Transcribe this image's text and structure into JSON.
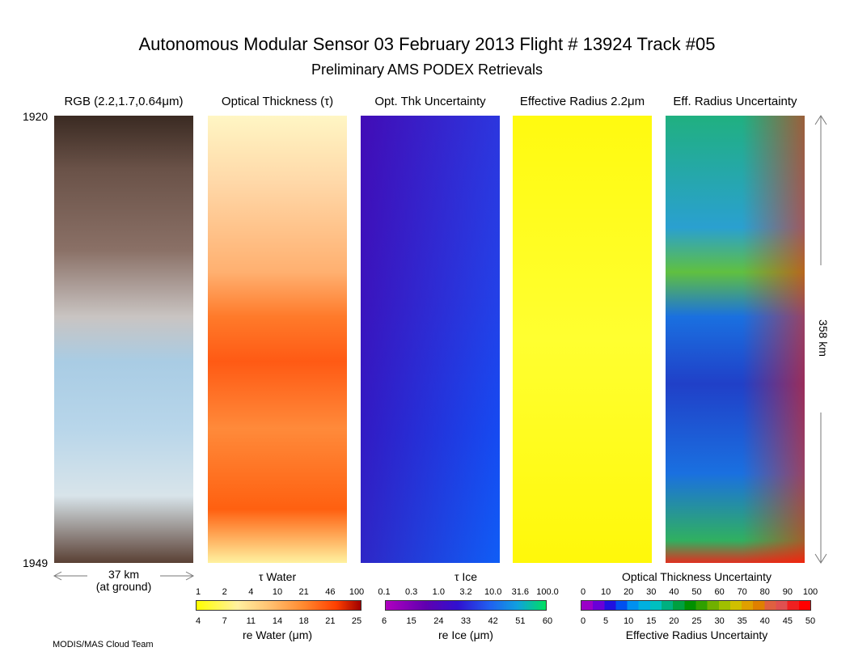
{
  "header": {
    "title": "Autonomous Modular Sensor  03 February 2013  Flight # 13924 Track #05",
    "subtitle": "Preliminary AMS PODEX Retrievals"
  },
  "panels": [
    "RGB (2.2,1.7,0.64μm)",
    "Optical Thickness (τ)",
    "Opt. Thk Uncertainty",
    "Effective Radius 2.2μm",
    "Eff. Radius Uncertainty"
  ],
  "time_start": "1920",
  "time_end": "1949",
  "width_label": "37 km",
  "width_note": "(at ground)",
  "length_label": "358 km",
  "colorbars": [
    {
      "top_label": "τ Water",
      "top_ticks": [
        "1",
        "2",
        "4",
        "10",
        "21",
        "46",
        "100"
      ],
      "bottom_ticks": [
        "4",
        "7",
        "11",
        "14",
        "18",
        "21",
        "25"
      ],
      "bottom_label": "re Water (μm)"
    },
    {
      "top_label": "τ Ice",
      "top_ticks": [
        "0.1",
        "0.3",
        "1.0",
        "3.2",
        "10.0",
        "31.6",
        "100.0"
      ],
      "bottom_ticks": [
        "6",
        "15",
        "24",
        "33",
        "42",
        "51",
        "60"
      ],
      "bottom_label": "re Ice (μm)"
    },
    {
      "top_label": "Optical Thickness Uncertainty",
      "top_ticks": [
        "0",
        "10",
        "20",
        "30",
        "40",
        "50",
        "60",
        "70",
        "80",
        "90",
        "100"
      ],
      "bottom_ticks": [
        "0",
        "5",
        "10",
        "15",
        "20",
        "25",
        "30",
        "35",
        "40",
        "45",
        "50"
      ],
      "bottom_label": "Effective Radius Uncertainty"
    }
  ],
  "footer": "MODIS/MAS Cloud Team"
}
